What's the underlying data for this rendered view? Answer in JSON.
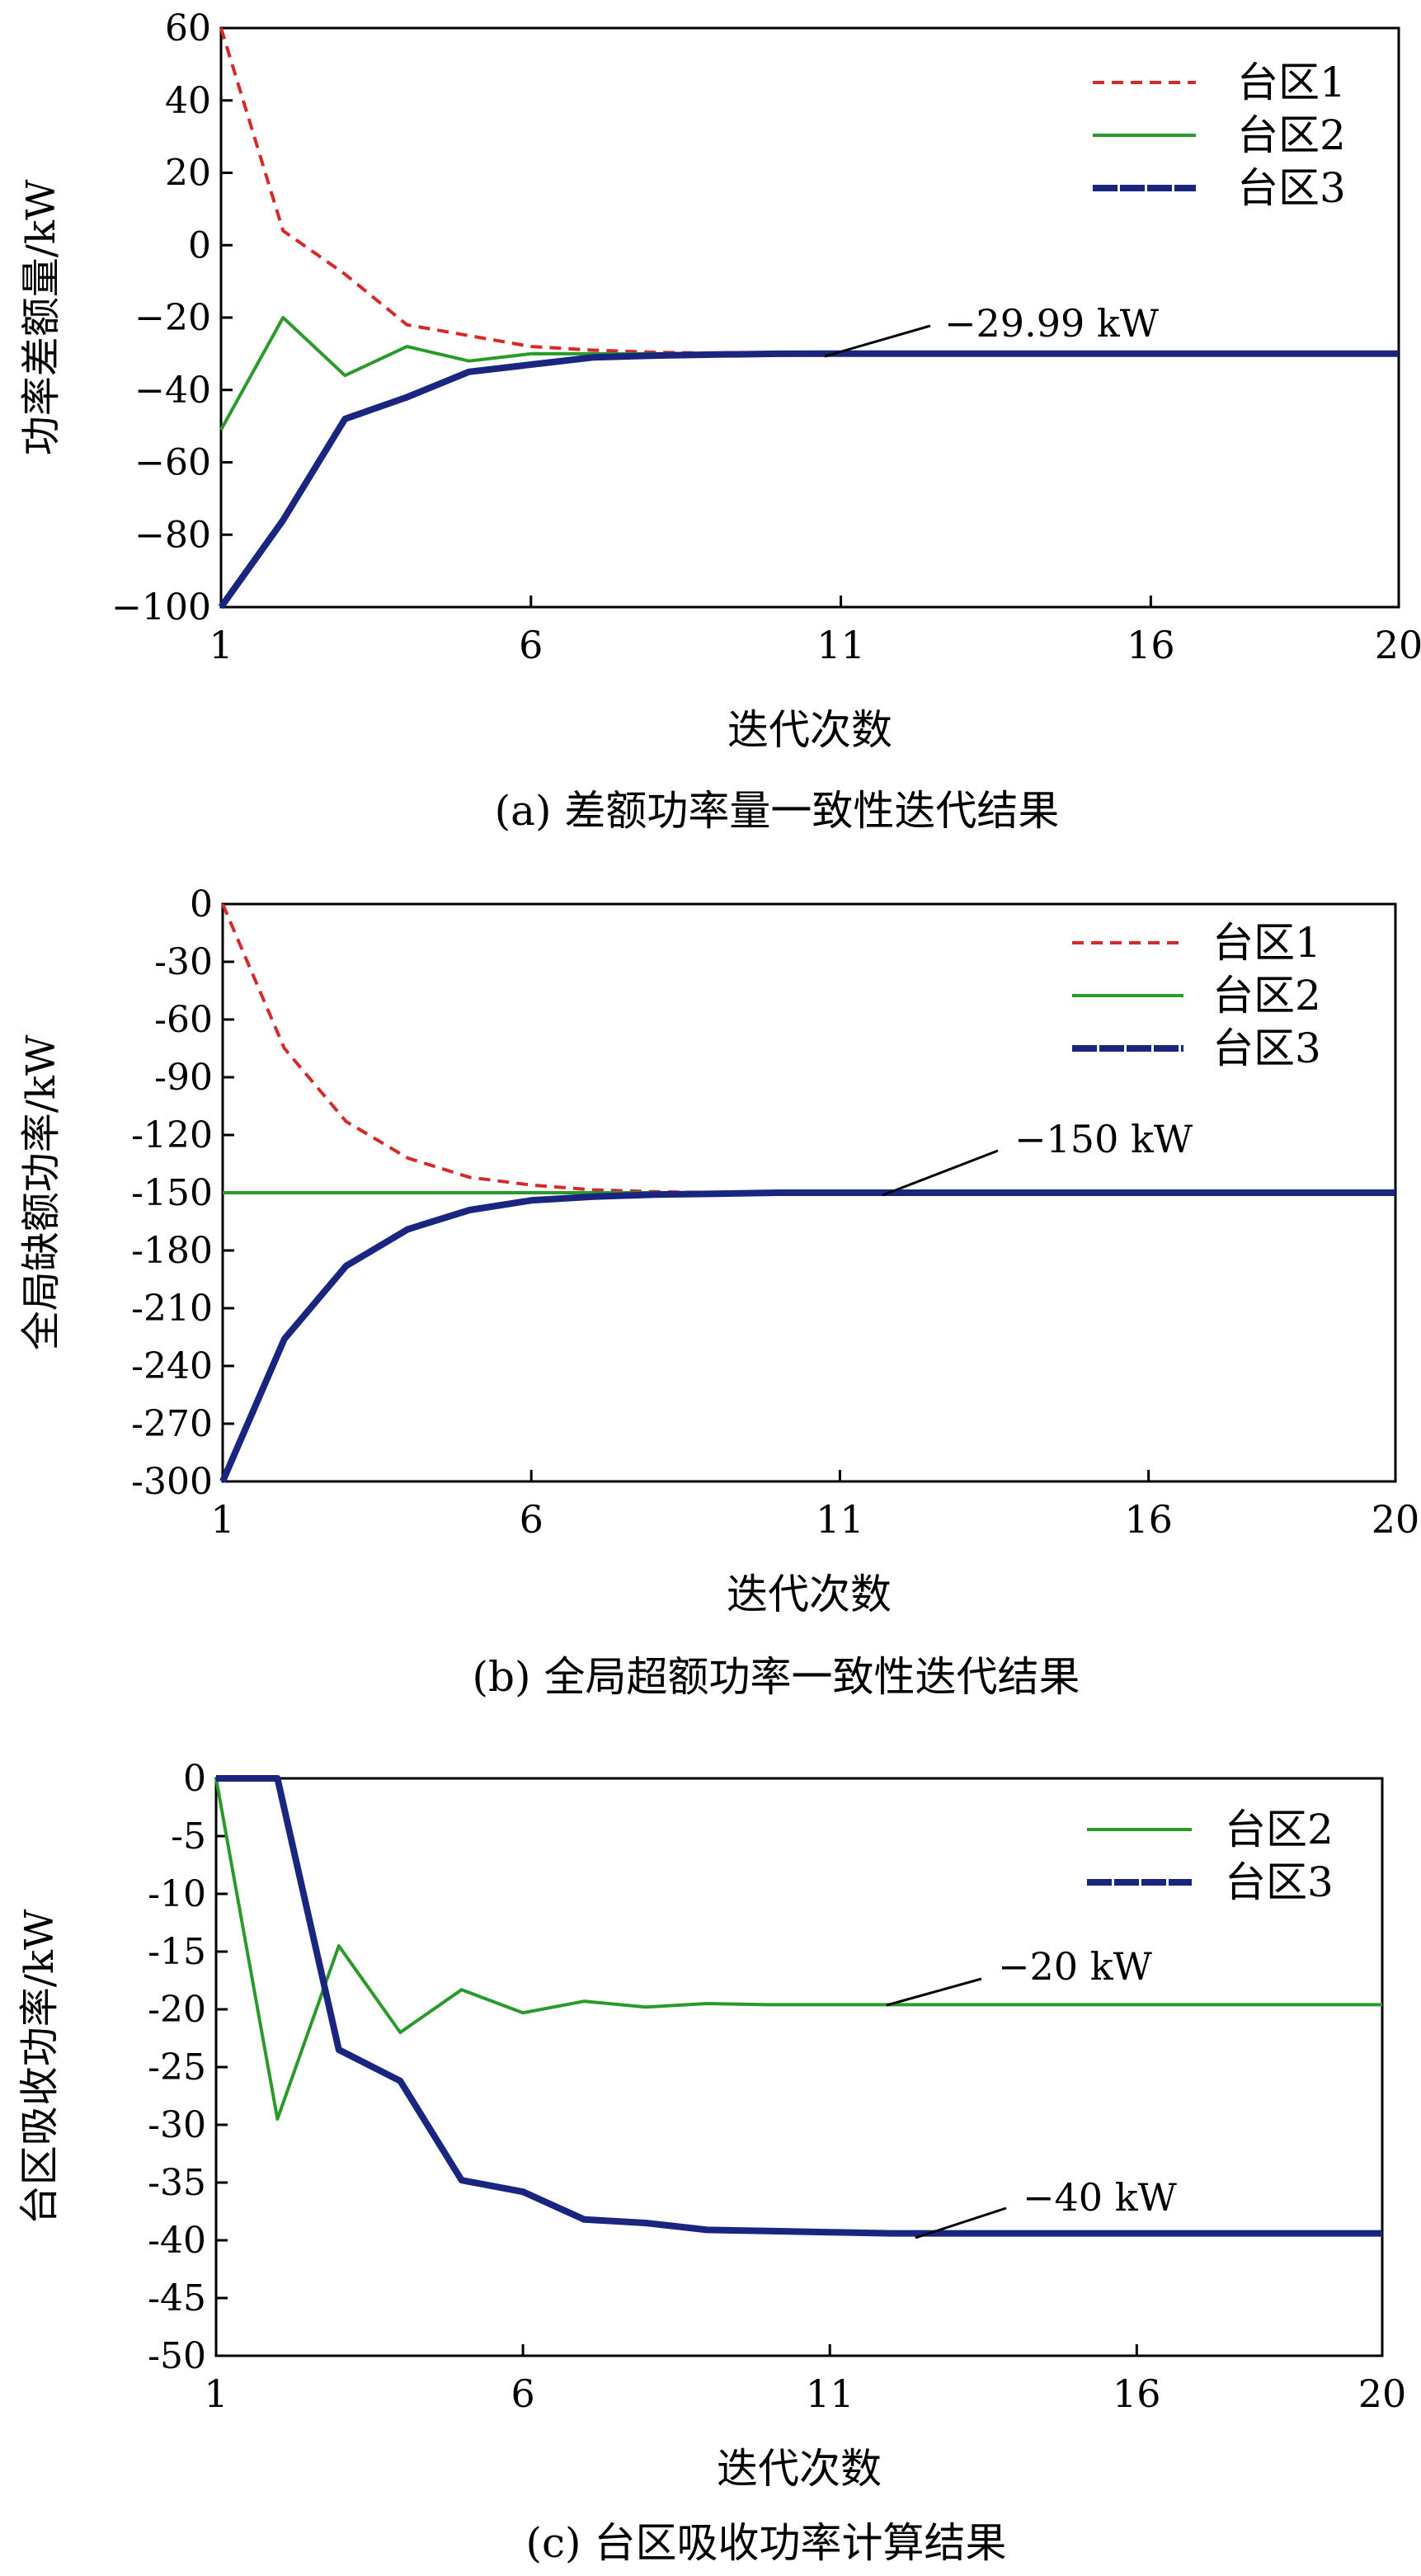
{
  "chart_data": [
    {
      "panel": "a",
      "type": "line",
      "caption": "(a) 差额功率量一致性迭代结果",
      "xlabel": "迭代次数",
      "ylabel": "功率差额量/kW",
      "xlim": [
        1,
        20
      ],
      "ylim": [
        -100,
        60
      ],
      "xticks": [
        1,
        6,
        11,
        16,
        20
      ],
      "yticks": [
        -100,
        -80,
        -60,
        -40,
        -20,
        0,
        20,
        40,
        60
      ],
      "ytick_labels": [
        "−100",
        "−80",
        "−60",
        "−40",
        "−20",
        "0",
        "20",
        "40",
        "60"
      ],
      "legend_position": "top-right",
      "annotation": {
        "text": "−29.99 kW",
        "x": 11,
        "y": -29.99
      },
      "series": [
        {
          "name": "台区1",
          "color": "#d42a2a",
          "style": "dashed",
          "x": [
            1,
            2,
            3,
            4,
            5,
            6,
            7,
            8,
            9,
            10,
            11,
            12,
            13,
            14,
            15,
            16,
            17,
            18,
            19,
            20
          ],
          "y": [
            60,
            4,
            -8,
            -22,
            -25,
            -28,
            -29,
            -29.6,
            -29.9,
            -29.99,
            -29.99,
            -29.99,
            -29.99,
            -29.99,
            -29.99,
            -29.99,
            -29.99,
            -29.99,
            -29.99,
            -29.99
          ]
        },
        {
          "name": "台区2",
          "color": "#2a9a2a",
          "style": "solid",
          "x": [
            1,
            2,
            3,
            4,
            5,
            6,
            7,
            8,
            9,
            10,
            11,
            12,
            13,
            14,
            15,
            16,
            17,
            18,
            19,
            20
          ],
          "y": [
            -51,
            -20,
            -36,
            -28,
            -32,
            -30,
            -30,
            -30,
            -30,
            -29.99,
            -29.99,
            -29.99,
            -29.99,
            -29.99,
            -29.99,
            -29.99,
            -29.99,
            -29.99,
            -29.99,
            -29.99
          ]
        },
        {
          "name": "台区3",
          "color": "#1a2580",
          "style": "thick",
          "x": [
            1,
            2,
            3,
            4,
            5,
            6,
            7,
            8,
            9,
            10,
            11,
            12,
            13,
            14,
            15,
            16,
            17,
            18,
            19,
            20
          ],
          "y": [
            -100,
            -76,
            -48,
            -42,
            -35,
            -33,
            -31,
            -30.5,
            -30.2,
            -30,
            -29.99,
            -29.99,
            -29.99,
            -29.99,
            -29.99,
            -29.99,
            -29.99,
            -29.99,
            -29.99,
            -29.99
          ]
        }
      ]
    },
    {
      "panel": "b",
      "type": "line",
      "caption": "(b) 全局超额功率一致性迭代结果",
      "xlabel": "迭代次数",
      "ylabel": "全局缺额功率/kW",
      "xlim": [
        1,
        20
      ],
      "ylim": [
        -300,
        0
      ],
      "xticks": [
        1,
        6,
        11,
        16,
        20
      ],
      "yticks": [
        -300,
        -270,
        -240,
        -210,
        -180,
        -150,
        -120,
        -90,
        -60,
        -30,
        0
      ],
      "ytick_labels": [
        "-300",
        "-270",
        "-240",
        "-210",
        "-180",
        "-150",
        "-120",
        "-90",
        "-60",
        "-30",
        "0"
      ],
      "legend_position": "top-right",
      "annotation": {
        "text": "−150 kW",
        "x": 12,
        "y": -150
      },
      "series": [
        {
          "name": "台区1",
          "color": "#d42a2a",
          "style": "dashed",
          "x": [
            1,
            2,
            3,
            4,
            5,
            6,
            7,
            8,
            9,
            10,
            11,
            12,
            13,
            14,
            15,
            16,
            17,
            18,
            19,
            20
          ],
          "y": [
            0,
            -75,
            -113,
            -132,
            -142,
            -146,
            -148.5,
            -149.5,
            -150,
            -150,
            -150,
            -150,
            -150,
            -150,
            -150,
            -150,
            -150,
            -150,
            -150,
            -150
          ]
        },
        {
          "name": "台区2",
          "color": "#2a9a2a",
          "style": "solid",
          "x": [
            1,
            2,
            3,
            4,
            5,
            6,
            7,
            8,
            9,
            10,
            11,
            12,
            13,
            14,
            15,
            16,
            17,
            18,
            19,
            20
          ],
          "y": [
            -150,
            -150,
            -150,
            -150,
            -150,
            -150,
            -150,
            -150,
            -150,
            -150,
            -150,
            -150,
            -150,
            -150,
            -150,
            -150,
            -150,
            -150,
            -150,
            -150
          ]
        },
        {
          "name": "台区3",
          "color": "#1a2580",
          "style": "thick",
          "x": [
            1,
            2,
            3,
            4,
            5,
            6,
            7,
            8,
            9,
            10,
            11,
            12,
            13,
            14,
            15,
            16,
            17,
            18,
            19,
            20
          ],
          "y": [
            -300,
            -226,
            -188,
            -169,
            -159,
            -154,
            -152,
            -151,
            -150.5,
            -150,
            -150,
            -150,
            -150,
            -150,
            -150,
            -150,
            -150,
            -150,
            -150,
            -150
          ]
        }
      ]
    },
    {
      "panel": "c",
      "type": "line",
      "caption": "(c) 台区吸收功率计算结果",
      "xlabel": "迭代次数",
      "ylabel": "台区吸收功率/kW",
      "xlim": [
        1,
        20
      ],
      "ylim": [
        -50,
        0
      ],
      "xticks": [
        1,
        6,
        11,
        16,
        20
      ],
      "yticks": [
        -50,
        -45,
        -40,
        -35,
        -30,
        -25,
        -20,
        -15,
        -10,
        -5,
        0
      ],
      "ytick_labels": [
        "-50",
        "-45",
        "-40",
        "-35",
        "-30",
        "-25",
        "-20",
        "-15",
        "-10",
        "-5",
        "0"
      ],
      "legend_position": "top-right",
      "annotations": [
        {
          "text": "−20 kW",
          "x": 12,
          "y": -19.6
        },
        {
          "text": "−40 kW",
          "x": 12.5,
          "y": -39.5
        }
      ],
      "series": [
        {
          "name": "台区2",
          "color": "#2a9a2a",
          "style": "solid",
          "x": [
            1,
            2,
            3,
            4,
            5,
            6,
            7,
            8,
            9,
            10,
            11,
            12,
            13,
            14,
            15,
            16,
            17,
            18,
            19,
            20
          ],
          "y": [
            0,
            -29.5,
            -14.5,
            -22,
            -18.3,
            -20.3,
            -19.3,
            -19.8,
            -19.5,
            -19.6,
            -19.6,
            -19.6,
            -19.6,
            -19.6,
            -19.6,
            -19.6,
            -19.6,
            -19.6,
            -19.6,
            -19.6
          ]
        },
        {
          "name": "台区3",
          "color": "#1a2580",
          "style": "thick",
          "x": [
            1,
            2,
            3,
            4,
            5,
            6,
            7,
            8,
            9,
            10,
            11,
            12,
            13,
            14,
            15,
            16,
            17,
            18,
            19,
            20
          ],
          "y": [
            0,
            0,
            -23.5,
            -26.2,
            -34.8,
            -35.8,
            -38.2,
            -38.5,
            -39.1,
            -39.2,
            -39.3,
            -39.4,
            -39.4,
            -39.4,
            -39.4,
            -39.4,
            -39.4,
            -39.4,
            -39.4,
            -39.4
          ]
        }
      ]
    }
  ]
}
